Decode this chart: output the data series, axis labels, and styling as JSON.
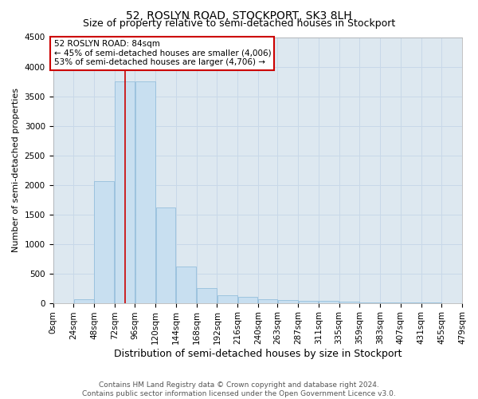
{
  "title": "52, ROSLYN ROAD, STOCKPORT, SK3 8LH",
  "subtitle": "Size of property relative to semi-detached houses in Stockport",
  "xlabel": "Distribution of semi-detached houses by size in Stockport",
  "ylabel": "Number of semi-detached properties",
  "footer_line1": "Contains HM Land Registry data © Crown copyright and database right 2024.",
  "footer_line2": "Contains public sector information licensed under the Open Government Licence v3.0.",
  "property_size": 84,
  "annotation_title": "52 ROSLYN ROAD: 84sqm",
  "annotation_line1": "← 45% of semi-detached houses are smaller (4,006)",
  "annotation_line2": "53% of semi-detached houses are larger (4,706) →",
  "bar_color": "#c8dff0",
  "bar_edge_color": "#8ab8d8",
  "bar_left_edges": [
    0,
    24,
    48,
    72,
    96,
    120,
    144,
    168,
    192,
    216,
    240,
    263,
    287,
    311,
    335,
    359,
    383,
    407,
    431,
    455
  ],
  "bar_widths": [
    24,
    24,
    24,
    24,
    24,
    24,
    24,
    24,
    24,
    24,
    23,
    24,
    24,
    24,
    24,
    24,
    24,
    24,
    24,
    24
  ],
  "bar_heights": [
    0,
    60,
    2060,
    3750,
    3750,
    1620,
    620,
    250,
    130,
    100,
    60,
    50,
    40,
    30,
    20,
    10,
    10,
    5,
    2,
    1
  ],
  "xtick_labels": [
    "0sqm",
    "24sqm",
    "48sqm",
    "72sqm",
    "96sqm",
    "120sqm",
    "144sqm",
    "168sqm",
    "192sqm",
    "216sqm",
    "240sqm",
    "263sqm",
    "287sqm",
    "311sqm",
    "335sqm",
    "359sqm",
    "383sqm",
    "407sqm",
    "431sqm",
    "455sqm",
    "479sqm"
  ],
  "xtick_positions": [
    0,
    24,
    48,
    72,
    96,
    120,
    144,
    168,
    192,
    216,
    240,
    263,
    287,
    311,
    335,
    359,
    383,
    407,
    431,
    455,
    479
  ],
  "ylim": [
    0,
    4500
  ],
  "xlim": [
    0,
    479
  ],
  "yticks": [
    0,
    500,
    1000,
    1500,
    2000,
    2500,
    3000,
    3500,
    4000,
    4500
  ],
  "grid_color": "#c8d8e8",
  "background_color": "#dde8f0",
  "bar_alpha": 1.0,
  "vline_x": 84,
  "vline_color": "#cc0000",
  "annotation_box_color": "#cc0000",
  "title_fontsize": 10,
  "subtitle_fontsize": 9,
  "xlabel_fontsize": 9,
  "ylabel_fontsize": 8,
  "tick_fontsize": 7.5,
  "annotation_fontsize": 7.5,
  "footer_fontsize": 6.5
}
